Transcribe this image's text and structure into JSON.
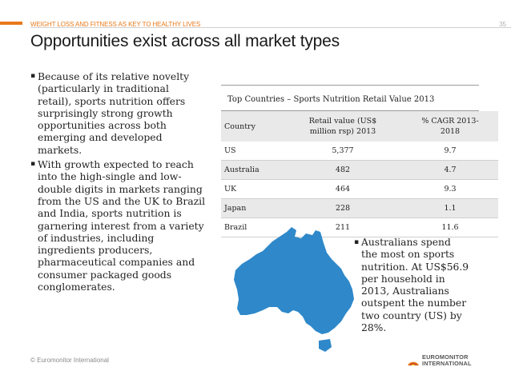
{
  "header": {
    "kicker": "WEIGHT LOSS AND FITNESS AS KEY TO HEALTHY LIVES",
    "page_number": "35",
    "title": "Opportunities exist across all market types"
  },
  "left_bullets": [
    {
      "lines": [
        "Because of its relative novelty",
        "(particularly in traditional",
        "retail), sports nutrition offers",
        "surprisingly strong growth",
        "opportunities across both",
        "emerging and developed",
        "markets."
      ]
    },
    {
      "lines": [
        "With growth expected to reach",
        "into the high-single and low-",
        "double digits in markets ranging",
        "from the US and the UK to Brazil",
        "and India, sports nutrition is",
        "garnering interest from a variety",
        "of industries, including",
        "ingredients producers,",
        "pharmaceutical companies and",
        "consumer packaged goods",
        "conglomerates."
      ]
    }
  ],
  "table": {
    "title": "Top Countries – Sports Nutrition Retail Value 2013",
    "headers": {
      "country": "Country",
      "retail_value_line1": "Retail value (US$",
      "retail_value_line2": "million rsp) 2013",
      "cagr_line1": "% CAGR 2013-",
      "cagr_line2": "2018"
    },
    "rows": [
      {
        "country": "US",
        "value": "5,377",
        "cagr": "9.7"
      },
      {
        "country": "Australia",
        "value": "482",
        "cagr": "4.7"
      },
      {
        "country": "UK",
        "value": "464",
        "cagr": "9.3"
      },
      {
        "country": "Japan",
        "value": "228",
        "cagr": "1.1"
      },
      {
        "country": "Brazil",
        "value": "211",
        "cagr": "11.6"
      }
    ]
  },
  "map": {
    "icon": "australia-map",
    "color": "#2e88c9"
  },
  "right_note": {
    "lines": [
      "Australians spend",
      "the most on sports",
      "nutrition. At US$56.9",
      "per household in",
      "2013, Australians",
      "outspent the number",
      "two country (US) by",
      "28%."
    ]
  },
  "footer": {
    "copyright": "© Euromonitor International",
    "logo_line1": "EUROMONITOR",
    "logo_line2": "INTERNATIONAL"
  },
  "colors": {
    "accent": "#e8791a",
    "map_blue": "#2e88c9"
  }
}
